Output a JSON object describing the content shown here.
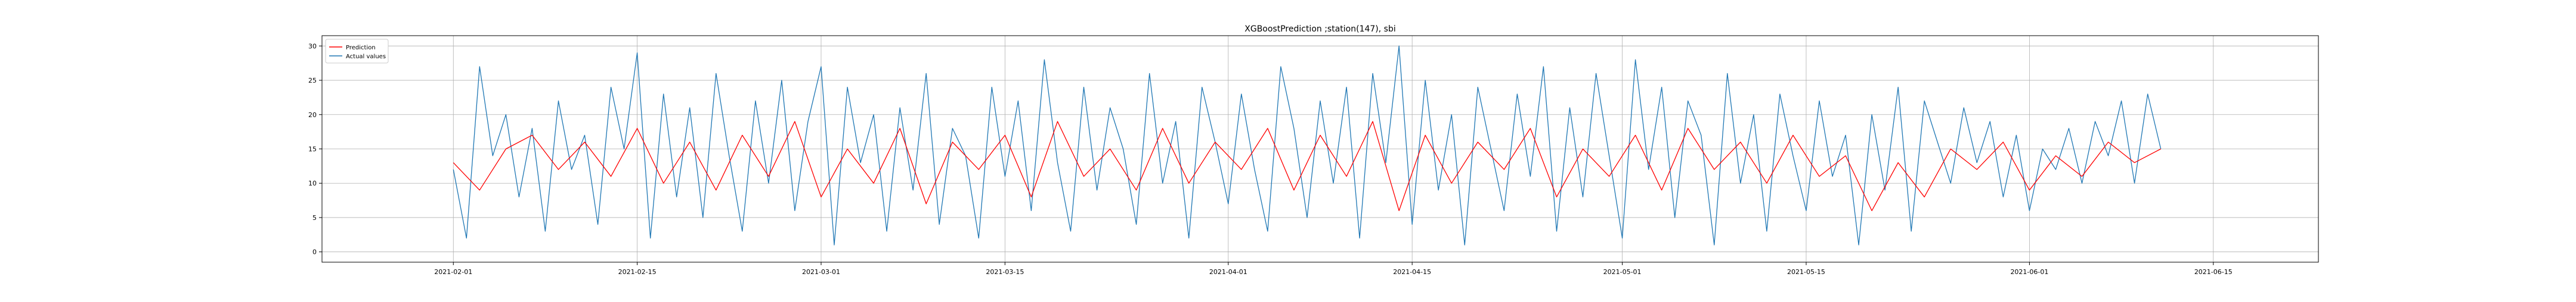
{
  "chart_data": {
    "type": "line",
    "title": "XGBoostPrediction ;station(147), sbi",
    "xlabel": "",
    "ylabel": "",
    "x_range": [
      "2021-01-22",
      "2021-06-23"
    ],
    "y_range": [
      -1.5,
      31.5
    ],
    "x_ticks": [
      "2021-02-01",
      "2021-02-15",
      "2021-03-01",
      "2021-03-15",
      "2021-04-01",
      "2021-04-15",
      "2021-05-01",
      "2021-05-15",
      "2021-06-01",
      "2021-06-15"
    ],
    "y_ticks": [
      0,
      5,
      10,
      15,
      20,
      25,
      30
    ],
    "grid": true,
    "legend_position": "top-left",
    "series": [
      {
        "name": "Prediction",
        "color": "#ff0000",
        "x": [
          "2021-02-01",
          "2021-02-03",
          "2021-02-05",
          "2021-02-07",
          "2021-02-09",
          "2021-02-11",
          "2021-02-13",
          "2021-02-15",
          "2021-02-17",
          "2021-02-19",
          "2021-02-21",
          "2021-02-23",
          "2021-02-25",
          "2021-02-27",
          "2021-03-01",
          "2021-03-03",
          "2021-03-05",
          "2021-03-07",
          "2021-03-09",
          "2021-03-11",
          "2021-03-13",
          "2021-03-15",
          "2021-03-17",
          "2021-03-19",
          "2021-03-21",
          "2021-03-23",
          "2021-03-25",
          "2021-03-27",
          "2021-03-29",
          "2021-03-31",
          "2021-04-02",
          "2021-04-04",
          "2021-04-06",
          "2021-04-08",
          "2021-04-10",
          "2021-04-12",
          "2021-04-14",
          "2021-04-16",
          "2021-04-18",
          "2021-04-20",
          "2021-04-22",
          "2021-04-24",
          "2021-04-26",
          "2021-04-28",
          "2021-04-30",
          "2021-05-02",
          "2021-05-04",
          "2021-05-06",
          "2021-05-08",
          "2021-05-10",
          "2021-05-12",
          "2021-05-14",
          "2021-05-16",
          "2021-05-18",
          "2021-05-20",
          "2021-05-22",
          "2021-05-24",
          "2021-05-26",
          "2021-05-28",
          "2021-05-30",
          "2021-06-01",
          "2021-06-03",
          "2021-06-05",
          "2021-06-07",
          "2021-06-09",
          "2021-06-11"
        ],
        "y": [
          13,
          9,
          15,
          17,
          12,
          16,
          11,
          18,
          10,
          16,
          9,
          17,
          11,
          19,
          8,
          15,
          10,
          18,
          7,
          16,
          12,
          17,
          8,
          19,
          11,
          15,
          9,
          18,
          10,
          16,
          12,
          18,
          9,
          17,
          11,
          19,
          6,
          17,
          10,
          16,
          12,
          18,
          8,
          15,
          11,
          17,
          9,
          18,
          12,
          16,
          10,
          17,
          11,
          14,
          6,
          13,
          8,
          15,
          12,
          16,
          9,
          14,
          11,
          16,
          13,
          15
        ]
      },
      {
        "name": "Actual values",
        "color": "#1f77b4",
        "x": [
          "2021-02-01",
          "2021-02-02",
          "2021-02-03",
          "2021-02-04",
          "2021-02-05",
          "2021-02-06",
          "2021-02-07",
          "2021-02-08",
          "2021-02-09",
          "2021-02-10",
          "2021-02-11",
          "2021-02-12",
          "2021-02-13",
          "2021-02-14",
          "2021-02-15",
          "2021-02-16",
          "2021-02-17",
          "2021-02-18",
          "2021-02-19",
          "2021-02-20",
          "2021-02-21",
          "2021-02-22",
          "2021-02-23",
          "2021-02-24",
          "2021-02-25",
          "2021-02-26",
          "2021-02-27",
          "2021-02-28",
          "2021-03-01",
          "2021-03-02",
          "2021-03-03",
          "2021-03-04",
          "2021-03-05",
          "2021-03-06",
          "2021-03-07",
          "2021-03-08",
          "2021-03-09",
          "2021-03-10",
          "2021-03-11",
          "2021-03-12",
          "2021-03-13",
          "2021-03-14",
          "2021-03-15",
          "2021-03-16",
          "2021-03-17",
          "2021-03-18",
          "2021-03-19",
          "2021-03-20",
          "2021-03-21",
          "2021-03-22",
          "2021-03-23",
          "2021-03-24",
          "2021-03-25",
          "2021-03-26",
          "2021-03-27",
          "2021-03-28",
          "2021-03-29",
          "2021-03-30",
          "2021-03-31",
          "2021-04-01",
          "2021-04-02",
          "2021-04-03",
          "2021-04-04",
          "2021-04-05",
          "2021-04-06",
          "2021-04-07",
          "2021-04-08",
          "2021-04-09",
          "2021-04-10",
          "2021-04-11",
          "2021-04-12",
          "2021-04-13",
          "2021-04-14",
          "2021-04-15",
          "2021-04-16",
          "2021-04-17",
          "2021-04-18",
          "2021-04-19",
          "2021-04-20",
          "2021-04-21",
          "2021-04-22",
          "2021-04-23",
          "2021-04-24",
          "2021-04-25",
          "2021-04-26",
          "2021-04-27",
          "2021-04-28",
          "2021-04-29",
          "2021-04-30",
          "2021-05-01",
          "2021-05-02",
          "2021-05-03",
          "2021-05-04",
          "2021-05-05",
          "2021-05-06",
          "2021-05-07",
          "2021-05-08",
          "2021-05-09",
          "2021-05-10",
          "2021-05-11",
          "2021-05-12",
          "2021-05-13",
          "2021-05-14",
          "2021-05-15",
          "2021-05-16",
          "2021-05-17",
          "2021-05-18",
          "2021-05-19",
          "2021-05-20",
          "2021-05-21",
          "2021-05-22",
          "2021-05-23",
          "2021-05-24",
          "2021-05-25",
          "2021-05-26",
          "2021-05-27",
          "2021-05-28",
          "2021-05-29",
          "2021-05-30",
          "2021-05-31",
          "2021-06-01",
          "2021-06-02",
          "2021-06-03",
          "2021-06-04",
          "2021-06-05",
          "2021-06-06",
          "2021-06-07",
          "2021-06-08",
          "2021-06-09",
          "2021-06-10",
          "2021-06-11"
        ],
        "y": [
          12,
          2,
          27,
          14,
          20,
          8,
          18,
          3,
          22,
          12,
          17,
          4,
          24,
          15,
          29,
          2,
          23,
          8,
          21,
          5,
          26,
          14,
          3,
          22,
          10,
          25,
          6,
          19,
          27,
          1,
          24,
          13,
          20,
          3,
          21,
          9,
          26,
          4,
          18,
          14,
          2,
          24,
          11,
          22,
          6,
          28,
          13,
          3,
          24,
          9,
          21,
          15,
          4,
          26,
          10,
          19,
          2,
          24,
          16,
          7,
          23,
          12,
          3,
          27,
          18,
          5,
          22,
          10,
          24,
          2,
          26,
          13,
          30,
          4,
          25,
          9,
          20,
          1,
          24,
          15,
          6,
          23,
          11,
          27,
          3,
          21,
          8,
          26,
          14,
          2,
          28,
          12,
          24,
          5,
          22,
          17,
          1,
          26,
          10,
          20,
          3,
          23,
          14,
          6,
          22,
          11,
          17,
          1,
          20,
          9,
          24,
          3,
          22,
          16,
          10,
          21,
          13,
          19,
          8,
          17,
          6,
          15,
          12,
          18,
          10,
          19,
          14,
          22,
          10,
          23,
          15
        ]
      }
    ]
  }
}
